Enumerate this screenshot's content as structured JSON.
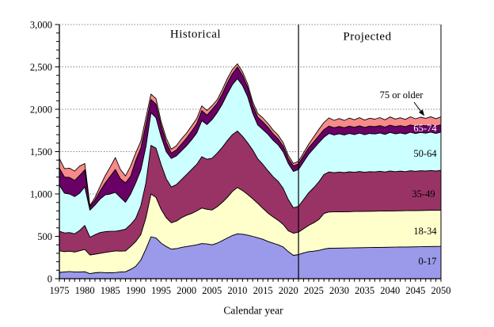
{
  "figure": {
    "regions": {
      "historical": "Historical",
      "projected": "Projected"
    },
    "divider_year": 2022,
    "annotation": {
      "text": "75 or older",
      "tip_year": 2047
    },
    "x_axis": {
      "title": "Calendar year",
      "tick_years": [
        1975,
        1980,
        1985,
        1990,
        1995,
        2000,
        2005,
        2010,
        2015,
        2020,
        2025,
        2030,
        2035,
        2040,
        2045,
        2050
      ],
      "minor_tick_every_years": 1
    },
    "y_axis": {
      "tick_values": [
        0,
        500,
        1000,
        1500,
        2000,
        2500,
        3000
      ],
      "tick_labels": [
        "0",
        "500",
        "1,000",
        "1,500",
        "2,000",
        "2,500",
        "3,000"
      ],
      "minor_tick_every": 100
    },
    "colors": {
      "gridline": "#888888",
      "axis": "#000000",
      "band_outline": "#000000",
      "divider": "#000000"
    }
  },
  "chart_data": {
    "type": "area",
    "stacked": true,
    "title": "",
    "xlabel": "Calendar year",
    "ylabel": "",
    "xlim": [
      1975,
      2050
    ],
    "ylim": [
      0,
      3000
    ],
    "grid": "horizontal dotted lines every 500",
    "legend_position": "labels inside right of plot",
    "x": [
      1975,
      1976,
      1977,
      1978,
      1979,
      1980,
      1981,
      1982,
      1983,
      1984,
      1985,
      1986,
      1987,
      1988,
      1989,
      1990,
      1991,
      1992,
      1993,
      1994,
      1995,
      1996,
      1997,
      1998,
      1999,
      2000,
      2001,
      2002,
      2003,
      2004,
      2005,
      2006,
      2007,
      2008,
      2009,
      2010,
      2011,
      2012,
      2013,
      2014,
      2015,
      2016,
      2017,
      2018,
      2019,
      2020,
      2021,
      2022,
      2023,
      2024,
      2025,
      2026,
      2027,
      2028,
      2029,
      2030,
      2031,
      2032,
      2033,
      2034,
      2035,
      2036,
      2037,
      2038,
      2039,
      2040,
      2041,
      2042,
      2043,
      2044,
      2045,
      2046,
      2047,
      2048,
      2049,
      2050
    ],
    "series": [
      {
        "name": "0-17",
        "color": "#9a99ea",
        "values": [
          75,
          80,
          85,
          80,
          80,
          82,
          60,
          70,
          75,
          72,
          70,
          73,
          80,
          82,
          110,
          146,
          220,
          350,
          495,
          480,
          420,
          380,
          350,
          355,
          370,
          380,
          390,
          400,
          415,
          410,
          400,
          420,
          450,
          480,
          510,
          530,
          525,
          515,
          500,
          483,
          465,
          440,
          420,
          400,
          375,
          320,
          276,
          285,
          305,
          320,
          325,
          335,
          350,
          360,
          361,
          362,
          363,
          364,
          365,
          366,
          367,
          368,
          369,
          370,
          371,
          372,
          373,
          374,
          375,
          376,
          377,
          378,
          379,
          380,
          381,
          382
        ]
      },
      {
        "name": "18-34",
        "color": "#ffffcc",
        "values": [
          255,
          240,
          240,
          235,
          250,
          265,
          220,
          220,
          225,
          238,
          250,
          255,
          245,
          246,
          270,
          292,
          300,
          370,
          505,
          480,
          400,
          340,
          311,
          325,
          350,
          370,
          380,
          400,
          420,
          410,
          411,
          430,
          450,
          480,
          520,
          547,
          515,
          480,
          445,
          407,
          365,
          335,
          310,
          290,
          265,
          245,
          261,
          265,
          285,
          310,
          335,
          365,
          420,
          428,
          428,
          428,
          428,
          428,
          428,
          428,
          428,
          428,
          428,
          428,
          428,
          428,
          428,
          428,
          428,
          428,
          428,
          428,
          428,
          428,
          428,
          428
        ]
      },
      {
        "name": "35-49",
        "color": "#993366",
        "values": [
          230,
          220,
          220,
          215,
          240,
          282,
          210,
          230,
          245,
          245,
          240,
          232,
          245,
          256,
          260,
          273,
          340,
          410,
          575,
          580,
          530,
          460,
          421,
          430,
          450,
          480,
          520,
          550,
          605,
          590,
          611,
          630,
          650,
          670,
          670,
          666,
          640,
          610,
          575,
          525,
          520,
          500,
          475,
          460,
          425,
          370,
          300,
          305,
          345,
          385,
          415,
          445,
          460,
          472,
          462,
          469,
          461,
          470,
          463,
          471,
          461,
          468,
          464,
          470,
          461,
          472,
          463,
          468,
          461,
          471,
          463,
          469,
          464,
          470,
          462,
          469
        ]
      },
      {
        "name": "50-64",
        "color": "#ccffff",
        "values": [
          545,
          470,
          455,
          440,
          440,
          456,
          320,
          350,
          395,
          435,
          440,
          460,
          390,
          319,
          360,
          420,
          420,
          430,
          385,
          360,
          330,
          320,
          338,
          340,
          340,
          340,
          350,
          370,
          425,
          410,
          456,
          480,
          510,
          550,
          590,
          620,
          600,
          545,
          435,
          400,
          410,
          430,
          430,
          430,
          430,
          425,
          430,
          435,
          445,
          455,
          462,
          462,
          440,
          455,
          445,
          452,
          444,
          453,
          446,
          454,
          444,
          451,
          447,
          453,
          444,
          455,
          446,
          451,
          444,
          454,
          446,
          452,
          447,
          453,
          445,
          452
        ]
      },
      {
        "name": "65-74",
        "color": "#690066",
        "values": [
          200,
          190,
          195,
          190,
          210,
          201,
          40,
          60,
          95,
          140,
          210,
          270,
          220,
          228,
          210,
          264,
          260,
          260,
          155,
          160,
          130,
          110,
          64,
          70,
          80,
          90,
          100,
          110,
          120,
          110,
          119,
          110,
          120,
          130,
          130,
          137,
          120,
          110,
          95,
          92,
          91,
          83,
          76,
          72,
          68,
          60,
          65,
          66,
          71,
          76,
          78,
          82,
          90,
          86,
          86,
          86,
          86,
          86,
          86,
          86,
          86,
          86,
          86,
          86,
          86,
          86,
          86,
          86,
          86,
          86,
          86,
          86,
          86,
          86,
          86,
          86
        ]
      },
      {
        "name": "75 or older",
        "color": "#f88a8a",
        "values": [
          115,
          100,
          110,
          110,
          110,
          74,
          12,
          30,
          55,
          85,
          110,
          140,
          110,
          82,
          120,
          91,
          80,
          80,
          64,
          65,
          45,
          50,
          45,
          50,
          60,
          60,
          65,
          60,
          55,
          55,
          45,
          40,
          50,
          50,
          50,
          36,
          40,
          40,
          40,
          43,
          46,
          45,
          44,
          43,
          42,
          35,
          28,
          30,
          35,
          42,
          60,
          75,
          85,
          97,
          87,
          94,
          86,
          95,
          88,
          96,
          86,
          93,
          89,
          95,
          86,
          97,
          88,
          93,
          86,
          96,
          88,
          94,
          89,
          95,
          87,
          94
        ]
      }
    ]
  }
}
